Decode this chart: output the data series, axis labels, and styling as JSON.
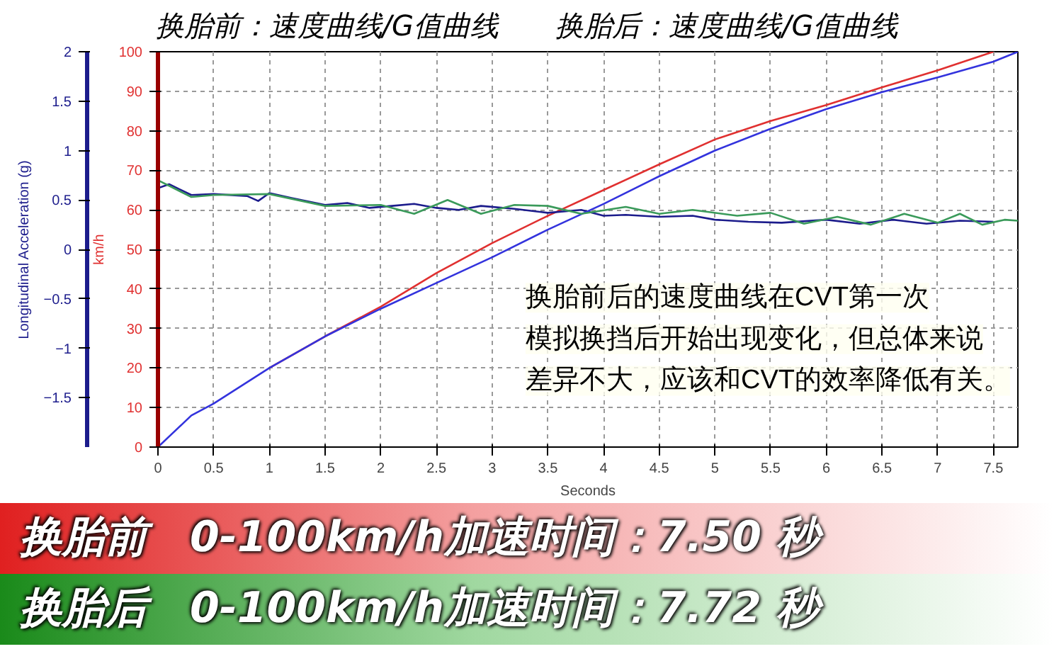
{
  "chart_data": {
    "type": "line",
    "title": "换胎前：速度曲线/G值曲线　　换胎后：速度曲线/G值曲线",
    "xlabel": "Seconds",
    "ylabel": "km/h",
    "y2label": "Longitudinal Acceleration (g)",
    "xlim": [
      0,
      7.72
    ],
    "xticks": [
      0,
      0.5,
      1,
      1.5,
      2,
      2.5,
      3,
      3.5,
      4,
      4.5,
      5,
      5.5,
      6,
      6.5,
      7,
      7.5
    ],
    "ylim": [
      0,
      100
    ],
    "yticks": [
      0,
      10,
      20,
      30,
      40,
      50,
      60,
      70,
      80,
      90,
      100
    ],
    "y2lim": [
      -2,
      2
    ],
    "y2ticks": [
      -1.5,
      -1,
      -0.5,
      0,
      0.5,
      1,
      1.5,
      2
    ],
    "grid": true,
    "marker": "none",
    "line_style": "solid",
    "series": [
      {
        "color": "#e03030",
        "x": [
          1,
          1.5,
          2,
          2.5,
          3,
          3.5,
          4,
          4.5,
          5,
          5.5,
          6,
          6.5,
          7,
          7.5
        ],
        "values": [
          20,
          28,
          35.5,
          44,
          51.6,
          58.5,
          65,
          71.5,
          77.8,
          82.5,
          86.5,
          91,
          95.3,
          100
        ]
      },
      {
        "color": "#1c1c8c",
        "axis": "y2",
        "x": [
          0,
          0.1,
          0.3,
          0.5,
          0.8,
          0.9,
          1.0,
          1.2,
          1.5,
          1.7,
          1.9,
          2.1,
          2.3,
          2.5,
          2.7,
          2.9,
          3.2,
          3.5,
          3.8,
          4.0,
          4.2,
          4.5,
          4.8,
          5.0,
          5.3,
          5.6,
          6.0,
          6.3,
          6.6,
          6.9,
          7.2,
          7.5
        ],
        "values": [
          0.62,
          0.66,
          0.55,
          0.56,
          0.54,
          0.49,
          0.57,
          0.52,
          0.45,
          0.47,
          0.42,
          0.44,
          0.46,
          0.42,
          0.4,
          0.44,
          0.41,
          0.37,
          0.4,
          0.34,
          0.35,
          0.33,
          0.34,
          0.3,
          0.28,
          0.27,
          0.3,
          0.26,
          0.3,
          0.26,
          0.29,
          0.28
        ]
      },
      {
        "color": "#3333dd",
        "x": [
          0,
          0.3,
          0.5,
          1,
          1.5,
          2,
          2.5,
          3,
          3.5,
          4,
          4.5,
          5,
          5.5,
          6,
          6.5,
          7,
          7.5,
          7.72
        ],
        "values": [
          0,
          8,
          11,
          20,
          28,
          35,
          41.5,
          48,
          55,
          61.5,
          68.5,
          75,
          80.5,
          85.5,
          89.8,
          93.5,
          97.5,
          100
        ]
      },
      {
        "color": "#3a9a5a",
        "axis": "y2",
        "x": [
          0,
          0.3,
          0.5,
          1.0,
          1.5,
          2.0,
          2.3,
          2.6,
          2.9,
          3.2,
          3.5,
          3.8,
          4.2,
          4.5,
          4.8,
          5.2,
          5.5,
          5.8,
          6.1,
          6.4,
          6.7,
          7.0,
          7.2,
          7.4,
          7.6,
          7.72
        ],
        "values": [
          0.7,
          0.53,
          0.55,
          0.56,
          0.44,
          0.45,
          0.36,
          0.5,
          0.36,
          0.45,
          0.44,
          0.36,
          0.43,
          0.36,
          0.4,
          0.34,
          0.37,
          0.26,
          0.33,
          0.25,
          0.36,
          0.27,
          0.36,
          0.25,
          0.3,
          0.29
        ]
      }
    ],
    "annotations": [
      "换胎前后的速度曲线在CVT第一次",
      "模拟换挡后开始出现变化，但总体来说",
      "差异不大，应该和CVT的效率降低有关。",
      "换胎前　0-100km/h加速时间：7.50 秒",
      "换胎后　0-100km/h加速时间：7.72 秒"
    ]
  }
}
